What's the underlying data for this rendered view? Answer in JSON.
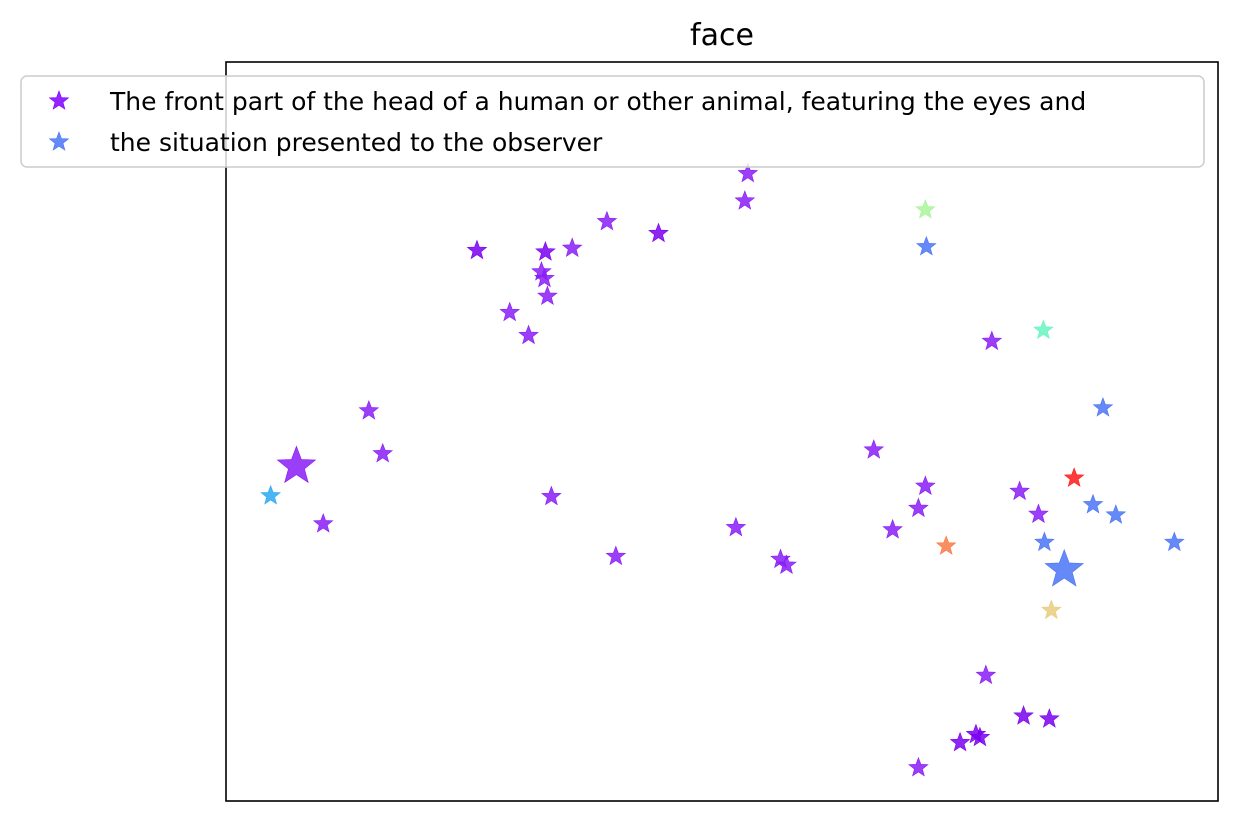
{
  "chart_data": {
    "type": "scatter",
    "title": "face",
    "xlabel": "",
    "ylabel": "",
    "xlim": [
      0,
      100
    ],
    "ylim": [
      0,
      100
    ],
    "grid": false,
    "legend_placement": "top",
    "series": [
      {
        "name": "The front part of the head of a human or other animal, featuring the eyes and",
        "color": "#8000ff",
        "points": [
          {
            "x": 7.1,
            "y": 45.3,
            "size": "large",
            "color": "#8a1cf7"
          },
          {
            "x": 9.8,
            "y": 37.5,
            "color": "#8a1cf7"
          },
          {
            "x": 14.4,
            "y": 52.8,
            "color": "#8a1cf7"
          },
          {
            "x": 15.8,
            "y": 47.0,
            "color": "#8a1cf7"
          },
          {
            "x": 25.3,
            "y": 74.5,
            "color": "#7a00f0"
          },
          {
            "x": 28.6,
            "y": 66.1,
            "color": "#8a1cf7"
          },
          {
            "x": 30.5,
            "y": 63.0,
            "color": "#8a1cf7"
          },
          {
            "x": 31.8,
            "y": 71.6,
            "color": "#8a1cf7"
          },
          {
            "x": 32.1,
            "y": 70.7,
            "color": "#8a1cf7"
          },
          {
            "x": 32.2,
            "y": 74.3,
            "color": "#7a00f0"
          },
          {
            "x": 32.4,
            "y": 68.3,
            "color": "#8a1cf7"
          },
          {
            "x": 32.8,
            "y": 41.2,
            "color": "#8a1cf7"
          },
          {
            "x": 34.9,
            "y": 74.8,
            "color": "#8a1cf7"
          },
          {
            "x": 38.4,
            "y": 78.4,
            "color": "#8a1cf7"
          },
          {
            "x": 39.3,
            "y": 33.1,
            "color": "#8a1cf7"
          },
          {
            "x": 43.6,
            "y": 76.8,
            "color": "#7a00f0"
          },
          {
            "x": 51.4,
            "y": 37.0,
            "color": "#8a1cf7"
          },
          {
            "x": 52.3,
            "y": 81.2,
            "color": "#8a1cf7"
          },
          {
            "x": 52.6,
            "y": 84.9,
            "color": "#8a1cf7"
          },
          {
            "x": 55.9,
            "y": 32.7,
            "color": "#8a1cf7"
          },
          {
            "x": 56.5,
            "y": 31.9,
            "color": "#8a1cf7"
          },
          {
            "x": 65.3,
            "y": 47.5,
            "color": "#8a1cf7"
          },
          {
            "x": 67.2,
            "y": 36.7,
            "color": "#8a1cf7"
          },
          {
            "x": 69.8,
            "y": 39.6,
            "color": "#8a1cf7"
          },
          {
            "x": 70.5,
            "y": 42.6,
            "color": "#8a1cf7"
          },
          {
            "x": 69.8,
            "y": 4.5,
            "color": "#8a1cf7"
          },
          {
            "x": 74.0,
            "y": 7.9,
            "color": "#7a00f0"
          },
          {
            "x": 75.6,
            "y": 9.0,
            "color": "#7a00f0"
          },
          {
            "x": 76.0,
            "y": 8.6,
            "color": "#7a00f0"
          },
          {
            "x": 76.6,
            "y": 17.0,
            "color": "#8a1cf7"
          },
          {
            "x": 77.2,
            "y": 62.2,
            "color": "#8a1cf7"
          },
          {
            "x": 80.0,
            "y": 41.9,
            "color": "#8a1cf7"
          },
          {
            "x": 80.4,
            "y": 11.5,
            "color": "#7a00f0"
          },
          {
            "x": 81.9,
            "y": 38.8,
            "color": "#8a1cf7"
          },
          {
            "x": 83.0,
            "y": 11.1,
            "color": "#7a00f0"
          }
        ]
      },
      {
        "name": "the situation presented to the observer",
        "color": "#4a74f5",
        "points": [
          {
            "x": 4.5,
            "y": 41.3,
            "color": "#2aa8f2"
          },
          {
            "x": 70.5,
            "y": 80.0,
            "color": "#a8f59a"
          },
          {
            "x": 70.6,
            "y": 75.0,
            "color": "#4a74f5"
          },
          {
            "x": 72.6,
            "y": 34.5,
            "color": "#f77a45"
          },
          {
            "x": 82.4,
            "y": 63.7,
            "color": "#66f5c0"
          },
          {
            "x": 82.5,
            "y": 35.0,
            "color": "#4a74f5"
          },
          {
            "x": 83.2,
            "y": 25.8,
            "color": "#e8cb7c"
          },
          {
            "x": 84.5,
            "y": 31.3,
            "size": "large",
            "color": "#4a74f5"
          },
          {
            "x": 85.5,
            "y": 43.7,
            "color": "#ff1a1a"
          },
          {
            "x": 87.4,
            "y": 40.1,
            "color": "#4a74f5"
          },
          {
            "x": 88.4,
            "y": 53.2,
            "color": "#4a74f5"
          },
          {
            "x": 89.7,
            "y": 38.7,
            "color": "#4a74f5"
          },
          {
            "x": 95.6,
            "y": 35.0,
            "color": "#4a74f5"
          }
        ]
      }
    ]
  }
}
